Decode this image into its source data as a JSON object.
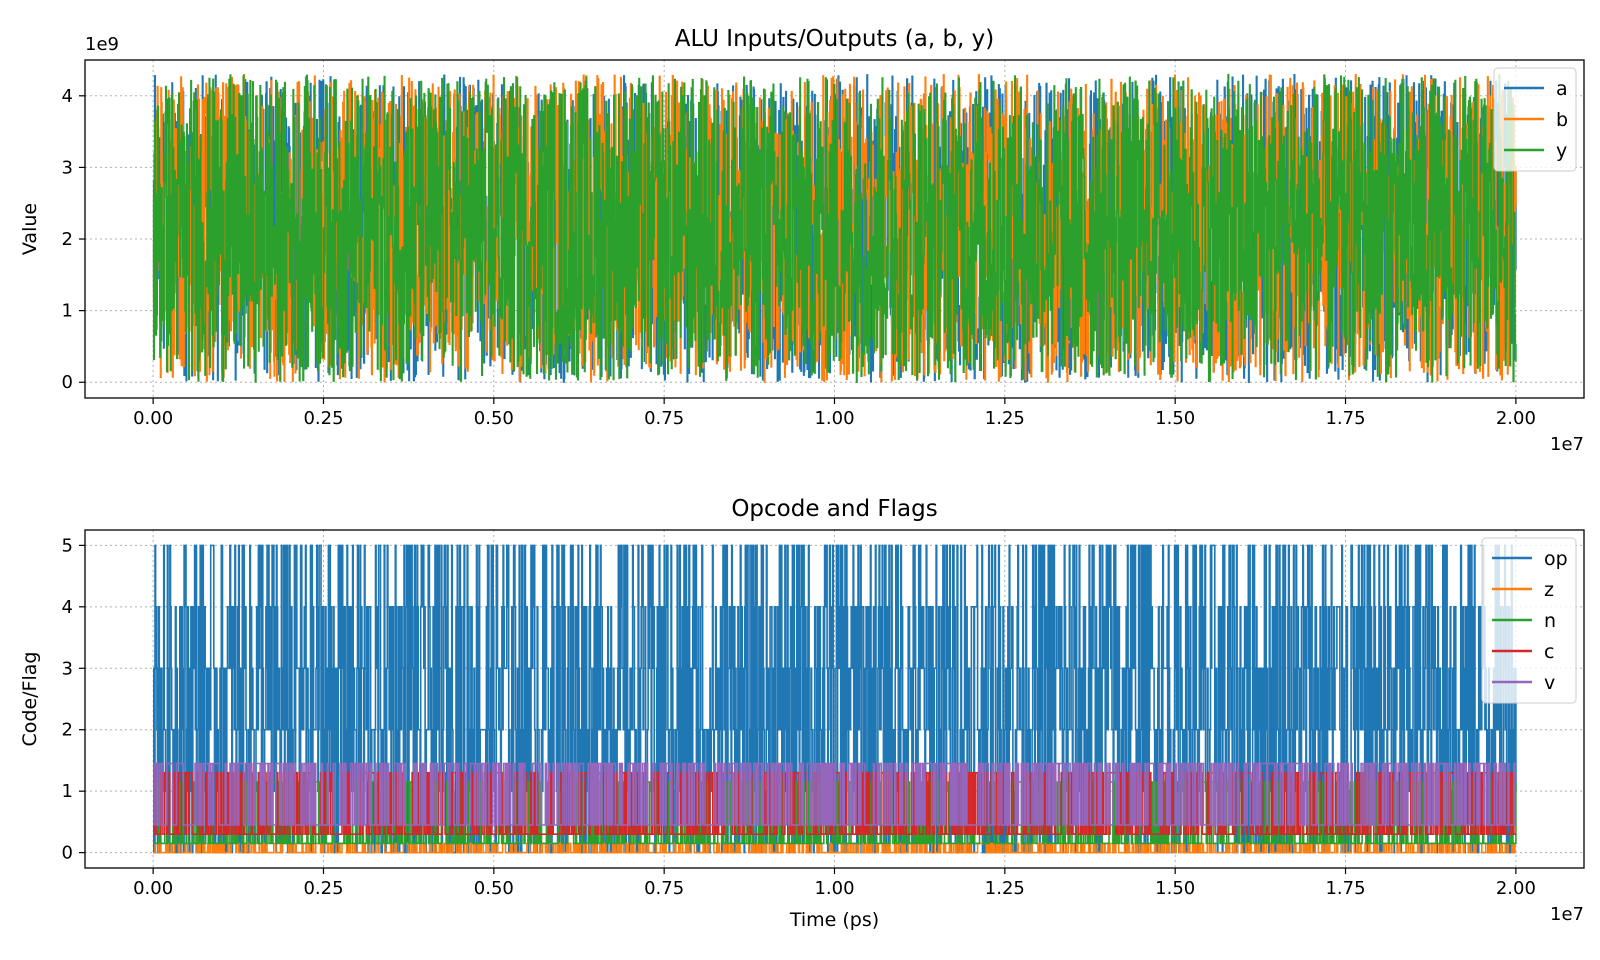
{
  "chart_data": [
    {
      "type": "line",
      "title": "ALU Inputs/Outputs (a, b, y)",
      "xlabel": "",
      "ylabel": "Value",
      "x_range": [
        0,
        20000000
      ],
      "xlim": [
        -1000000,
        21000000
      ],
      "ylim": [
        -220000000,
        4500000000
      ],
      "x_ticks": [
        0,
        2500000,
        5000000,
        7500000,
        10000000,
        12500000,
        15000000,
        17500000,
        20000000
      ],
      "x_tick_labels": [
        "0.00",
        "0.25",
        "0.50",
        "0.75",
        "1.00",
        "1.25",
        "1.50",
        "1.75",
        "2.00"
      ],
      "x_offset_label": "1e7",
      "y_ticks": [
        0,
        1000000000,
        2000000000,
        3000000000,
        4000000000
      ],
      "y_tick_labels": [
        "0",
        "1",
        "2",
        "3",
        "4"
      ],
      "y_offset_label": "1e9",
      "grid": true,
      "legend_position": "top-right",
      "value_range": [
        0,
        4294967295
      ],
      "series": [
        {
          "name": "a",
          "color": "#1f77b4",
          "style": "dense-random",
          "min": 0,
          "max": 4294967295
        },
        {
          "name": "b",
          "color": "#ff7f0e",
          "style": "dense-random",
          "min": 0,
          "max": 4294967295
        },
        {
          "name": "y",
          "color": "#2ca02c",
          "style": "dense-random",
          "min": 0,
          "max": 4294967295
        }
      ]
    },
    {
      "type": "line",
      "title": "Opcode and Flags",
      "xlabel": "Time (ps)",
      "ylabel": "Code/Flag",
      "x_range": [
        0,
        20000000
      ],
      "xlim": [
        -1000000,
        21000000
      ],
      "ylim": [
        -0.25,
        5.25
      ],
      "x_ticks": [
        0,
        2500000,
        5000000,
        7500000,
        10000000,
        12500000,
        15000000,
        17500000,
        20000000
      ],
      "x_tick_labels": [
        "0.00",
        "0.25",
        "0.50",
        "0.75",
        "1.00",
        "1.25",
        "1.50",
        "1.75",
        "2.00"
      ],
      "x_offset_label": "1e7",
      "y_ticks": [
        0,
        1,
        2,
        3,
        4,
        5
      ],
      "y_tick_labels": [
        "0",
        "1",
        "2",
        "3",
        "4",
        "5"
      ],
      "grid": true,
      "legend_position": "top-right",
      "series": [
        {
          "name": "op",
          "color": "#1f77b4",
          "style": "discrete",
          "levels": [
            0,
            1,
            2,
            3,
            4,
            5
          ]
        },
        {
          "name": "z",
          "color": "#ff7f0e",
          "style": "flag",
          "levels": [
            0,
            0.15
          ]
        },
        {
          "name": "n",
          "color": "#2ca02c",
          "style": "flag",
          "levels": [
            0.15,
            1.15
          ]
        },
        {
          "name": "c",
          "color": "#d62728",
          "style": "flag",
          "levels": [
            0.3,
            1.3
          ]
        },
        {
          "name": "v",
          "color": "#9467bd",
          "style": "flag",
          "levels": [
            0.45,
            1.45
          ]
        }
      ]
    }
  ]
}
